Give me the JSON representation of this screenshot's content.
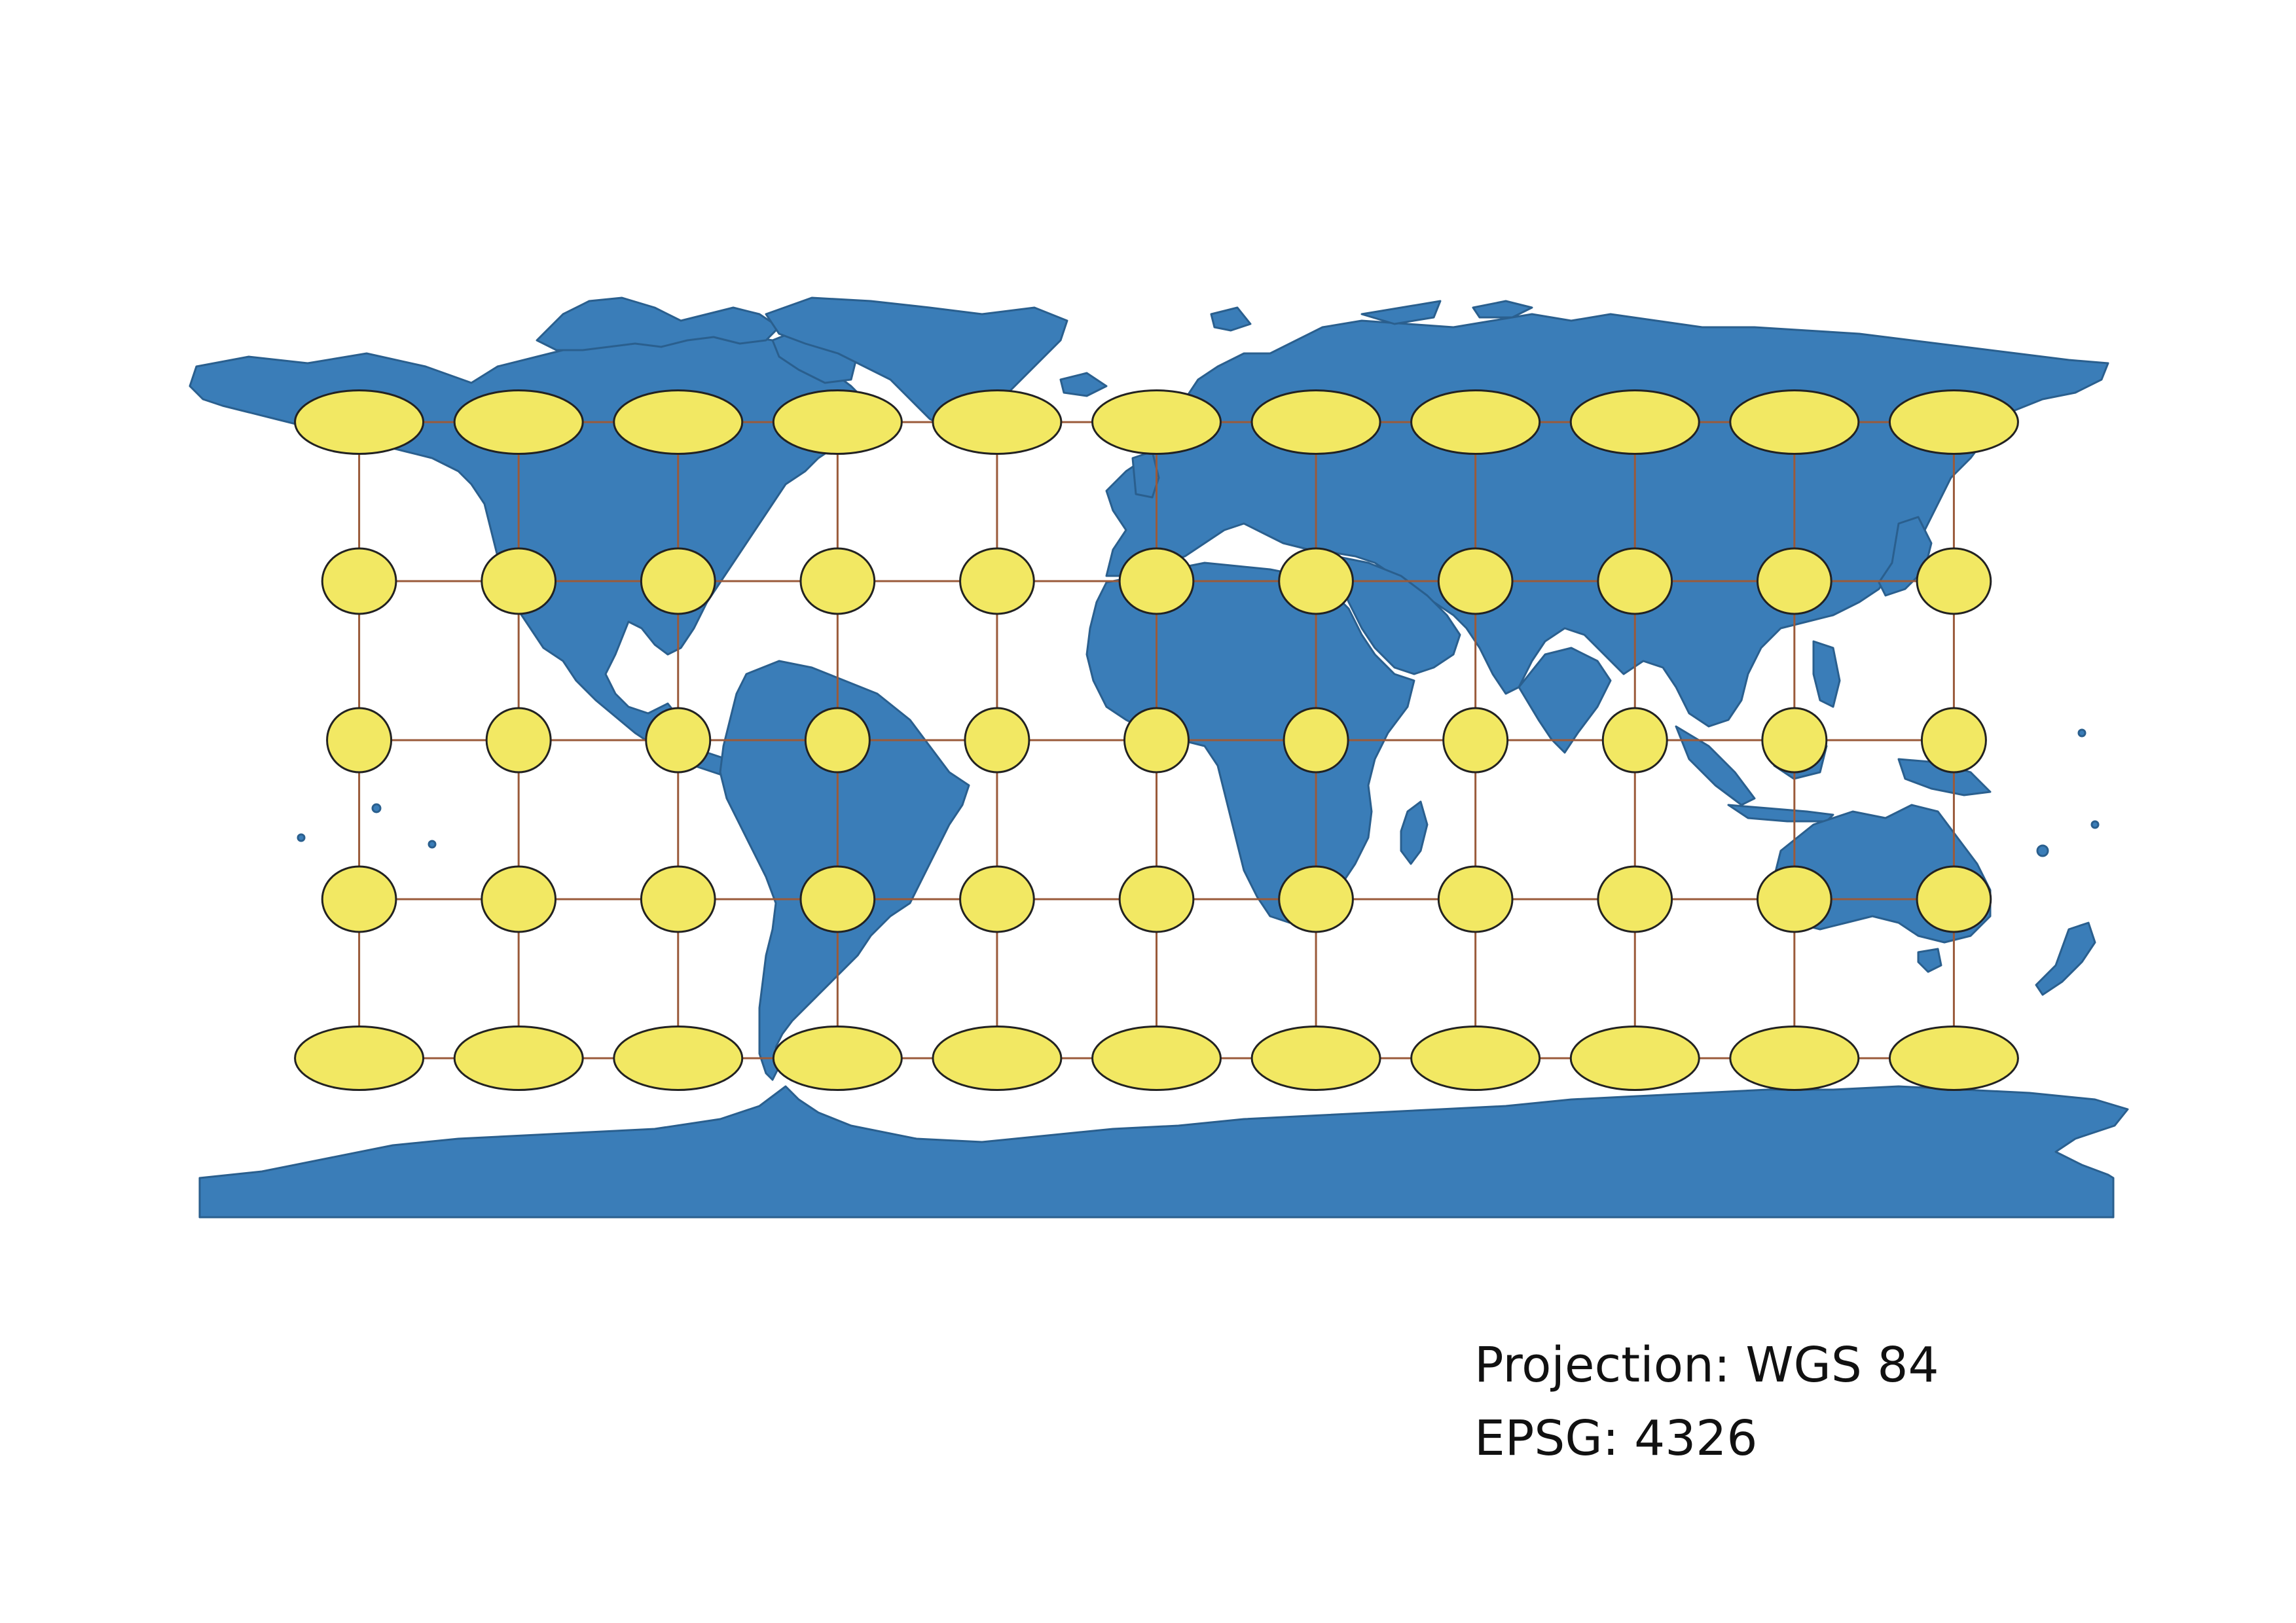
{
  "legend": {
    "projection_line": "Projection: WGS 84",
    "epsg_line": "EPSG: 4326"
  },
  "colors": {
    "land": "#3a7db8",
    "land_outline": "#2a5f8e",
    "indicatrix_fill": "#f2e863",
    "indicatrix_outline": "#222222",
    "graticule": "#9a5a3a",
    "background": "#ffffff"
  },
  "map": {
    "projection": "WGS 84 (EPSG:4326), plate carrée",
    "graticule": {
      "longitudes": [
        -150,
        -120,
        -90,
        -60,
        -30,
        0,
        30,
        60,
        90,
        120,
        150
      ],
      "latitudes": [
        60,
        30,
        0,
        -30,
        -60
      ]
    },
    "indicatrix_relative_width_by_latitude": {
      "60": 2.0,
      "30": 1.15,
      "0": 1.0,
      "-30": 1.15,
      "-60": 2.0
    }
  }
}
